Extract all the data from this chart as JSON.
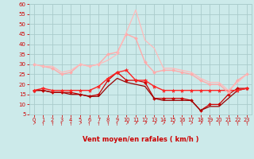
{
  "x": [
    0,
    1,
    2,
    3,
    4,
    5,
    6,
    7,
    8,
    9,
    10,
    11,
    12,
    13,
    14,
    15,
    16,
    17,
    18,
    19,
    20,
    21,
    22,
    23
  ],
  "series": [
    {
      "label": "s_dark_diamond",
      "color": "#cc0000",
      "lw": 0.9,
      "marker": "D",
      "markersize": 2.0,
      "y": [
        17,
        17,
        16,
        16,
        16,
        15,
        14,
        15,
        22,
        26,
        22,
        22,
        21,
        13,
        13,
        13,
        13,
        12,
        7,
        10,
        10,
        15,
        18,
        18
      ]
    },
    {
      "label": "s_dark_nomarker",
      "color": "#990000",
      "lw": 0.9,
      "marker": null,
      "markersize": 0,
      "y": [
        17,
        17,
        16,
        16,
        15,
        15,
        14,
        14,
        19,
        23,
        21,
        20,
        19,
        13,
        12,
        12,
        12,
        12,
        7,
        9,
        9,
        13,
        17,
        18
      ]
    },
    {
      "label": "s_bright_star",
      "color": "#ff2222",
      "lw": 1.0,
      "marker": "*",
      "markersize": 3.5,
      "y": [
        17,
        18,
        17,
        17,
        17,
        17,
        17,
        19,
        23,
        26,
        27,
        22,
        22,
        19,
        17,
        17,
        17,
        17,
        17,
        17,
        17,
        17,
        17,
        18
      ]
    },
    {
      "label": "s_light_diamond",
      "color": "#ffaaaa",
      "lw": 1.0,
      "marker": "D",
      "markersize": 2.0,
      "y": [
        30,
        29,
        28,
        25,
        26,
        30,
        29,
        30,
        35,
        36,
        45,
        43,
        31,
        26,
        27,
        27,
        26,
        25,
        22,
        20,
        20,
        16,
        22,
        25
      ]
    },
    {
      "label": "s_light_nomarker",
      "color": "#ffbbbb",
      "lw": 0.9,
      "marker": null,
      "markersize": 0,
      "y": [
        30,
        29,
        29,
        26,
        27,
        30,
        29,
        30,
        32,
        35,
        46,
        57,
        42,
        38,
        28,
        28,
        27,
        26,
        23,
        21,
        21,
        17,
        21,
        25
      ]
    }
  ],
  "ylim": [
    5,
    60
  ],
  "yticks": [
    5,
    10,
    15,
    20,
    25,
    30,
    35,
    40,
    45,
    50,
    55,
    60
  ],
  "xlim": [
    -0.5,
    23.5
  ],
  "xticks": [
    0,
    1,
    2,
    3,
    4,
    5,
    6,
    7,
    8,
    9,
    10,
    11,
    12,
    13,
    14,
    15,
    16,
    17,
    18,
    19,
    20,
    21,
    22,
    23
  ],
  "xlabel": "Vent moyen/en rafales ( km/h )",
  "background_color": "#cceaea",
  "grid_color": "#aacccc",
  "tick_color": "#cc0000",
  "label_color": "#cc0000",
  "wind_arrows": [
    "↗",
    "↑",
    "↑",
    "↑",
    "↑",
    "↗",
    "↑",
    "↑",
    "↑",
    "↑",
    "↗",
    "↗",
    "↗",
    "↗",
    "↗",
    "↗",
    "↑",
    "↗",
    "↗",
    "↑",
    "↑",
    "↑",
    "↑",
    "↑"
  ]
}
